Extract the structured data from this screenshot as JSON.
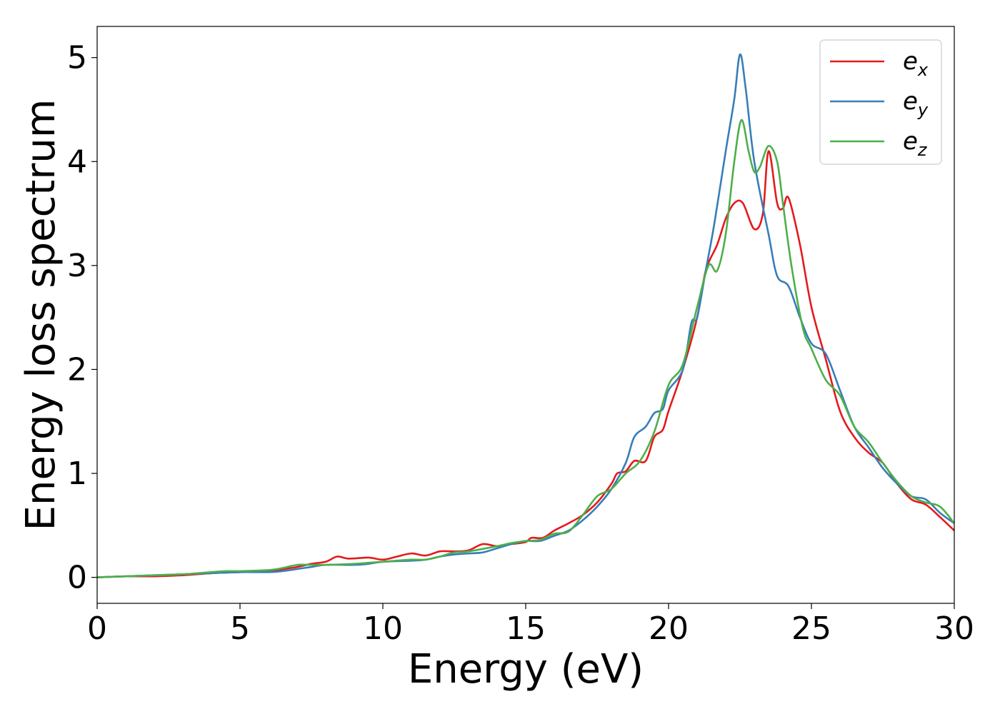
{
  "chart_data": {
    "type": "line",
    "xlabel": "Energy (eV)",
    "ylabel": "Energy loss spectrum",
    "xlim": [
      0,
      30
    ],
    "ylim": [
      -0.25,
      5.3
    ],
    "xticks": [
      "0",
      "5",
      "10",
      "15",
      "20",
      "25",
      "30"
    ],
    "yticks": [
      "0",
      "1",
      "2",
      "3",
      "4",
      "5"
    ],
    "grid": false,
    "legend_position": "top-right",
    "series": [
      {
        "name": "e_x",
        "legend_base": "e",
        "legend_sub": "x",
        "color": "#e41a1c",
        "points": [
          [
            0,
            0
          ],
          [
            1,
            0.01
          ],
          [
            2,
            0.01
          ],
          [
            3,
            0.02
          ],
          [
            4,
            0.04
          ],
          [
            5,
            0.05
          ],
          [
            6,
            0.06
          ],
          [
            7,
            0.1
          ],
          [
            7.5,
            0.13
          ],
          [
            8,
            0.15
          ],
          [
            8.4,
            0.2
          ],
          [
            8.8,
            0.18
          ],
          [
            9.5,
            0.19
          ],
          [
            10,
            0.17
          ],
          [
            10.5,
            0.2
          ],
          [
            11,
            0.23
          ],
          [
            11.5,
            0.21
          ],
          [
            12,
            0.25
          ],
          [
            12.5,
            0.25
          ],
          [
            13,
            0.26
          ],
          [
            13.5,
            0.32
          ],
          [
            14,
            0.3
          ],
          [
            14.5,
            0.32
          ],
          [
            15,
            0.34
          ],
          [
            15.2,
            0.38
          ],
          [
            15.6,
            0.38
          ],
          [
            16,
            0.45
          ],
          [
            16.5,
            0.52
          ],
          [
            17,
            0.6
          ],
          [
            17.5,
            0.72
          ],
          [
            18,
            0.9
          ],
          [
            18.2,
            1.0
          ],
          [
            18.5,
            1.02
          ],
          [
            18.8,
            1.12
          ],
          [
            19.2,
            1.12
          ],
          [
            19.5,
            1.35
          ],
          [
            19.8,
            1.42
          ],
          [
            20,
            1.6
          ],
          [
            20.5,
            2.0
          ],
          [
            21,
            2.5
          ],
          [
            21.3,
            2.95
          ],
          [
            21.7,
            3.2
          ],
          [
            22,
            3.45
          ],
          [
            22.3,
            3.6
          ],
          [
            22.6,
            3.6
          ],
          [
            23,
            3.35
          ],
          [
            23.3,
            3.5
          ],
          [
            23.5,
            4.1
          ],
          [
            23.8,
            3.6
          ],
          [
            24,
            3.55
          ],
          [
            24.2,
            3.65
          ],
          [
            24.6,
            3.2
          ],
          [
            25,
            2.6
          ],
          [
            25.5,
            2.1
          ],
          [
            26,
            1.6
          ],
          [
            26.5,
            1.35
          ],
          [
            27,
            1.2
          ],
          [
            27.5,
            1.1
          ],
          [
            28,
            0.9
          ],
          [
            28.5,
            0.75
          ],
          [
            29,
            0.7
          ],
          [
            29.5,
            0.58
          ],
          [
            30,
            0.45
          ]
        ]
      },
      {
        "name": "e_y",
        "legend_base": "e",
        "legend_sub": "y",
        "color": "#377eb8",
        "points": [
          [
            0,
            0
          ],
          [
            1,
            0.01
          ],
          [
            2,
            0.02
          ],
          [
            3,
            0.03
          ],
          [
            4,
            0.04
          ],
          [
            5,
            0.05
          ],
          [
            6,
            0.05
          ],
          [
            6.5,
            0.06
          ],
          [
            7,
            0.08
          ],
          [
            7.5,
            0.1
          ],
          [
            8,
            0.12
          ],
          [
            9,
            0.12
          ],
          [
            9.5,
            0.13
          ],
          [
            10,
            0.15
          ],
          [
            11,
            0.16
          ],
          [
            11.5,
            0.17
          ],
          [
            12,
            0.2
          ],
          [
            12.5,
            0.22
          ],
          [
            13,
            0.23
          ],
          [
            13.5,
            0.24
          ],
          [
            14,
            0.28
          ],
          [
            14.5,
            0.32
          ],
          [
            15,
            0.35
          ],
          [
            15.5,
            0.35
          ],
          [
            16,
            0.4
          ],
          [
            16.5,
            0.45
          ],
          [
            17,
            0.55
          ],
          [
            17.5,
            0.68
          ],
          [
            18,
            0.85
          ],
          [
            18.5,
            1.1
          ],
          [
            18.8,
            1.35
          ],
          [
            19.2,
            1.45
          ],
          [
            19.5,
            1.58
          ],
          [
            19.8,
            1.62
          ],
          [
            20,
            1.8
          ],
          [
            20.5,
            2.0
          ],
          [
            20.8,
            2.45
          ],
          [
            21,
            2.5
          ],
          [
            21.3,
            2.95
          ],
          [
            21.6,
            3.4
          ],
          [
            22,
            4.1
          ],
          [
            22.3,
            4.6
          ],
          [
            22.5,
            5.03
          ],
          [
            22.7,
            4.7
          ],
          [
            23,
            4.0
          ],
          [
            23.5,
            3.3
          ],
          [
            23.8,
            2.9
          ],
          [
            24.2,
            2.8
          ],
          [
            24.6,
            2.5
          ],
          [
            25,
            2.25
          ],
          [
            25.5,
            2.15
          ],
          [
            26,
            1.8
          ],
          [
            26.5,
            1.45
          ],
          [
            27,
            1.25
          ],
          [
            27.5,
            1.05
          ],
          [
            28,
            0.9
          ],
          [
            28.5,
            0.78
          ],
          [
            29,
            0.75
          ],
          [
            29.5,
            0.62
          ],
          [
            30,
            0.52
          ]
        ]
      },
      {
        "name": "e_z",
        "legend_base": "e",
        "legend_sub": "z",
        "color": "#4daf4a",
        "points": [
          [
            0,
            0
          ],
          [
            1,
            0.01
          ],
          [
            2,
            0.02
          ],
          [
            3,
            0.03
          ],
          [
            4,
            0.05
          ],
          [
            4.5,
            0.06
          ],
          [
            5,
            0.06
          ],
          [
            6,
            0.07
          ],
          [
            6.5,
            0.09
          ],
          [
            7,
            0.12
          ],
          [
            7.5,
            0.12
          ],
          [
            8,
            0.12
          ],
          [
            9,
            0.13
          ],
          [
            9.5,
            0.14
          ],
          [
            10,
            0.15
          ],
          [
            11,
            0.17
          ],
          [
            11.5,
            0.17
          ],
          [
            12,
            0.2
          ],
          [
            12.5,
            0.24
          ],
          [
            13,
            0.25
          ],
          [
            14,
            0.3
          ],
          [
            14.5,
            0.33
          ],
          [
            15,
            0.35
          ],
          [
            15.5,
            0.36
          ],
          [
            16,
            0.42
          ],
          [
            16.5,
            0.44
          ],
          [
            17,
            0.6
          ],
          [
            17.5,
            0.78
          ],
          [
            18,
            0.85
          ],
          [
            18.5,
            1.0
          ],
          [
            19,
            1.12
          ],
          [
            19.5,
            1.4
          ],
          [
            20,
            1.85
          ],
          [
            20.5,
            2.05
          ],
          [
            21,
            2.6
          ],
          [
            21.4,
            3.0
          ],
          [
            21.7,
            2.95
          ],
          [
            22,
            3.3
          ],
          [
            22.3,
            4.0
          ],
          [
            22.55,
            4.4
          ],
          [
            22.8,
            4.1
          ],
          [
            23,
            3.9
          ],
          [
            23.2,
            3.95
          ],
          [
            23.5,
            4.15
          ],
          [
            23.8,
            4.0
          ],
          [
            24,
            3.6
          ],
          [
            24.3,
            3.0
          ],
          [
            24.7,
            2.4
          ],
          [
            25,
            2.2
          ],
          [
            25.5,
            1.9
          ],
          [
            26,
            1.75
          ],
          [
            26.5,
            1.45
          ],
          [
            27,
            1.3
          ],
          [
            27.5,
            1.1
          ],
          [
            28,
            0.92
          ],
          [
            28.5,
            0.78
          ],
          [
            29,
            0.72
          ],
          [
            29.5,
            0.68
          ],
          [
            30,
            0.52
          ]
        ]
      }
    ]
  }
}
